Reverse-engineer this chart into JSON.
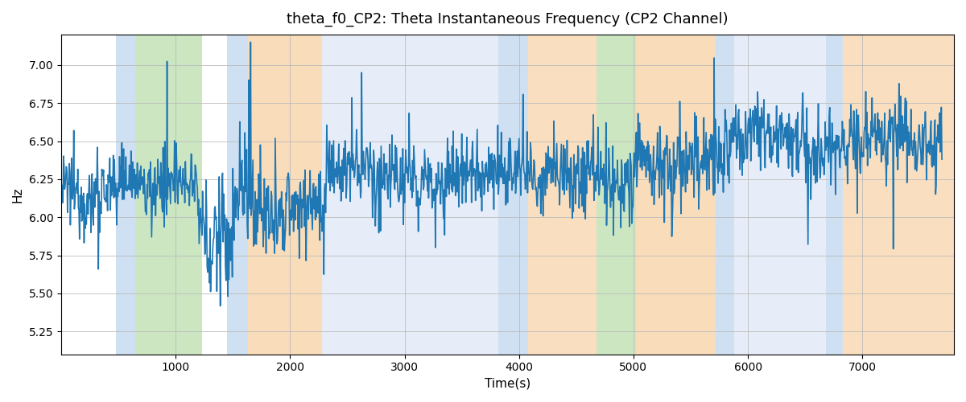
{
  "title": "theta_f0_CP2: Theta Instantaneous Frequency (CP2 Channel)",
  "xlabel": "Time(s)",
  "ylabel": "Hz",
  "ylim": [
    5.1,
    7.2
  ],
  "xlim": [
    0,
    7800
  ],
  "line_color": "#1f77b4",
  "line_width": 1.2,
  "grid": true,
  "background_color": "#ffffff",
  "figsize": [
    12,
    5
  ],
  "dpi": 100,
  "bands": [
    {
      "xmin": 480,
      "xmax": 650,
      "color": "#a8c8e8",
      "alpha": 0.55
    },
    {
      "xmin": 650,
      "xmax": 1230,
      "color": "#90c878",
      "alpha": 0.45
    },
    {
      "xmin": 1450,
      "xmax": 1630,
      "color": "#a8c8e8",
      "alpha": 0.55
    },
    {
      "xmin": 1630,
      "xmax": 2280,
      "color": "#f5c080",
      "alpha": 0.55
    },
    {
      "xmin": 2280,
      "xmax": 3820,
      "color": "#c8d8f0",
      "alpha": 0.45
    },
    {
      "xmin": 3820,
      "xmax": 4080,
      "color": "#a8c8e8",
      "alpha": 0.55
    },
    {
      "xmin": 4080,
      "xmax": 4680,
      "color": "#f5c080",
      "alpha": 0.5
    },
    {
      "xmin": 4680,
      "xmax": 5020,
      "color": "#90c878",
      "alpha": 0.45
    },
    {
      "xmin": 5020,
      "xmax": 5720,
      "color": "#f5c080",
      "alpha": 0.55
    },
    {
      "xmin": 5720,
      "xmax": 5880,
      "color": "#a8c8e8",
      "alpha": 0.55
    },
    {
      "xmin": 5880,
      "xmax": 6680,
      "color": "#c8d8f0",
      "alpha": 0.45
    },
    {
      "xmin": 6680,
      "xmax": 6830,
      "color": "#a8c8e8",
      "alpha": 0.55
    },
    {
      "xmin": 6830,
      "xmax": 7800,
      "color": "#f5c080",
      "alpha": 0.5
    }
  ],
  "seed": 12345,
  "n_points": 1540,
  "x_scale": 5,
  "segments": [
    {
      "start": 0,
      "end": 100,
      "mean": 6.15,
      "std": 0.12,
      "spike_std": 0.2,
      "spike_rate": 15
    },
    {
      "start": 100,
      "end": 240,
      "mean": 6.22,
      "std": 0.1,
      "spike_std": 0.18,
      "spike_rate": 12
    },
    {
      "start": 240,
      "end": 300,
      "mean": 5.85,
      "std": 0.2,
      "spike_std": 0.35,
      "spike_rate": 8
    },
    {
      "start": 300,
      "end": 460,
      "mean": 6.08,
      "std": 0.15,
      "spike_std": 0.3,
      "spike_rate": 8
    },
    {
      "start": 460,
      "end": 840,
      "mean": 6.28,
      "std": 0.12,
      "spike_std": 0.22,
      "spike_rate": 10
    },
    {
      "start": 840,
      "end": 960,
      "mean": 6.28,
      "std": 0.12,
      "spike_std": 0.22,
      "spike_rate": 10
    },
    {
      "start": 960,
      "end": 1000,
      "mean": 6.2,
      "std": 0.12,
      "spike_std": 0.2,
      "spike_rate": 10
    },
    {
      "start": 1000,
      "end": 1160,
      "mean": 6.35,
      "std": 0.13,
      "spike_std": 0.25,
      "spike_rate": 10
    },
    {
      "start": 1160,
      "end": 1540,
      "mean": 6.5,
      "std": 0.12,
      "spike_std": 0.2,
      "spike_rate": 10
    }
  ]
}
